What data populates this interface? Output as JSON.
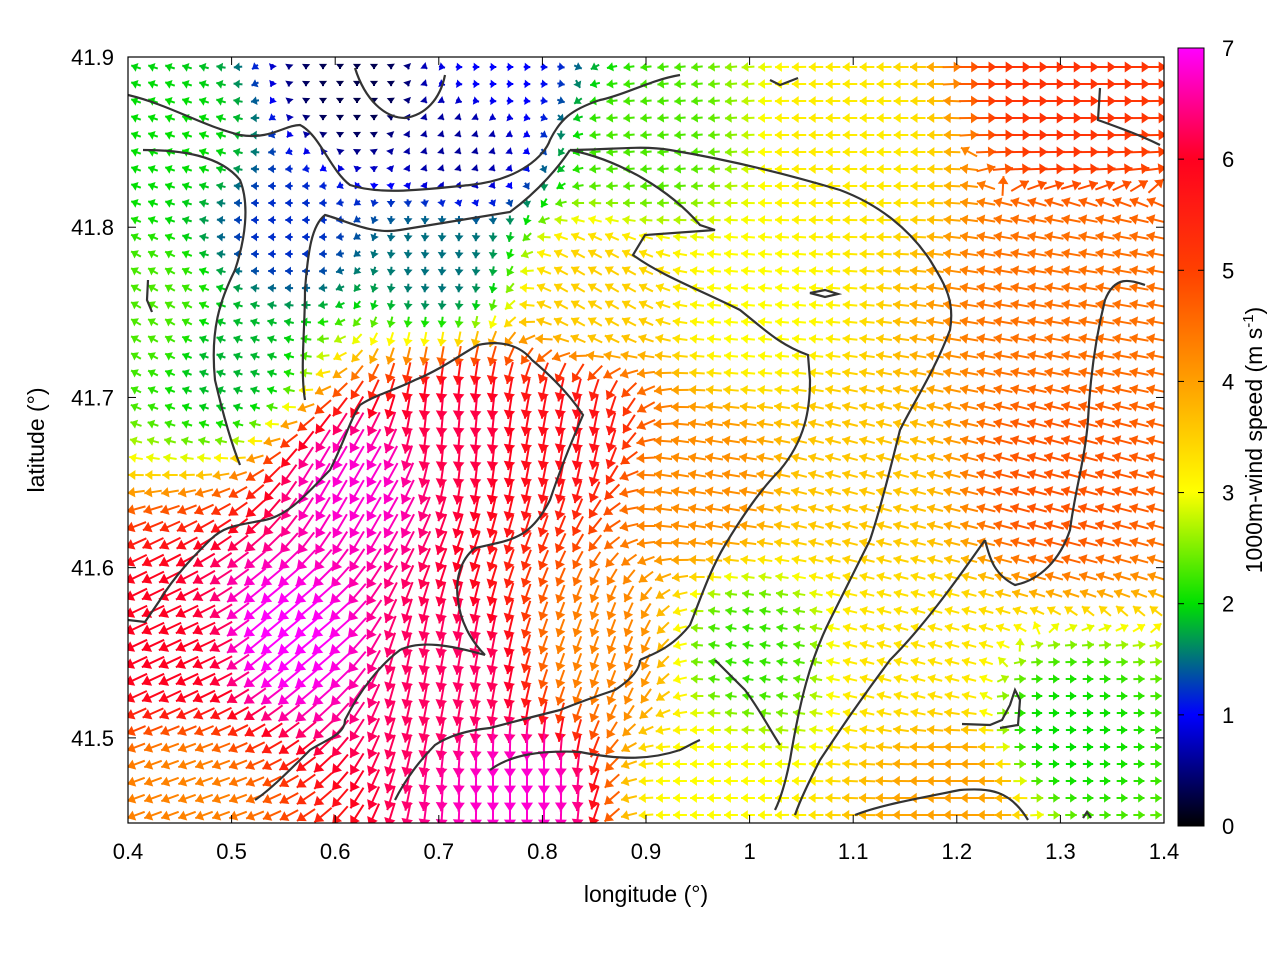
{
  "chart_data": {
    "type": "vector-field",
    "xlabel": "longitude (°)",
    "ylabel": "latitude (°)",
    "colorbar_label": "1000m-wind speed (m s",
    "colorbar_label_exp": "-1",
    "colorbar_label_end": ")",
    "xlim": [
      0.4,
      1.4
    ],
    "ylim": [
      41.45,
      41.9
    ],
    "xticks": [
      0.4,
      0.5,
      0.6,
      0.7,
      0.8,
      0.9,
      1.0,
      1.1,
      1.2,
      1.3,
      1.4
    ],
    "xtick_labels": [
      "0.4",
      "0.5",
      "0.6",
      "0.7",
      "0.8",
      "0.9",
      "1",
      "1.1",
      "1.2",
      "1.3",
      "1.4"
    ],
    "yticks": [
      41.5,
      41.6,
      41.7,
      41.8,
      41.9
    ],
    "ytick_labels": [
      "41.5",
      "41.6",
      "41.7",
      "41.8",
      "41.9"
    ],
    "colorbar_range": [
      0,
      7
    ],
    "colorbar_ticks": [
      "0",
      "1",
      "2",
      "3",
      "4",
      "5",
      "6",
      "7"
    ],
    "colormap": [
      "#000000",
      "#0000ff",
      "#00e000",
      "#ffff00",
      "#ffa000",
      "#ff4000",
      "#ff0020",
      "#ff00ff"
    ],
    "grid": false,
    "legend": "none",
    "field_samples": [
      {
        "lon": 0.45,
        "lat": 41.85,
        "speed": 2.0,
        "dir_deg": 200
      },
      {
        "lon": 0.55,
        "lat": 41.8,
        "speed": 1.2,
        "dir_deg": 180
      },
      {
        "lon": 0.62,
        "lat": 41.88,
        "speed": 0.3,
        "dir_deg": 90
      },
      {
        "lon": 0.72,
        "lat": 41.85,
        "speed": 0.6,
        "dir_deg": 45
      },
      {
        "lon": 0.75,
        "lat": 41.89,
        "speed": 1.0,
        "dir_deg": 0
      },
      {
        "lon": 0.9,
        "lat": 41.85,
        "speed": 2.3,
        "dir_deg": 175
      },
      {
        "lon": 1.1,
        "lat": 41.85,
        "speed": 3.2,
        "dir_deg": 180
      },
      {
        "lon": 1.3,
        "lat": 41.88,
        "speed": 5.2,
        "dir_deg": 0
      },
      {
        "lon": 0.42,
        "lat": 41.75,
        "speed": 2.3,
        "dir_deg": 210
      },
      {
        "lon": 0.5,
        "lat": 41.72,
        "speed": 1.8,
        "dir_deg": 200
      },
      {
        "lon": 0.7,
        "lat": 41.78,
        "speed": 1.5,
        "dir_deg": 95
      },
      {
        "lon": 0.85,
        "lat": 41.76,
        "speed": 3.5,
        "dir_deg": 210
      },
      {
        "lon": 1.0,
        "lat": 41.75,
        "speed": 3.0,
        "dir_deg": 185
      },
      {
        "lon": 1.3,
        "lat": 41.76,
        "speed": 4.5,
        "dir_deg": 190
      },
      {
        "lon": 0.62,
        "lat": 41.65,
        "speed": 6.8,
        "dir_deg": 120
      },
      {
        "lon": 0.72,
        "lat": 41.68,
        "speed": 6.2,
        "dir_deg": 95
      },
      {
        "lon": 0.82,
        "lat": 41.68,
        "speed": 5.8,
        "dir_deg": 100
      },
      {
        "lon": 0.95,
        "lat": 41.65,
        "speed": 4.2,
        "dir_deg": 190
      },
      {
        "lon": 1.1,
        "lat": 41.65,
        "speed": 3.6,
        "dir_deg": 195
      },
      {
        "lon": 1.3,
        "lat": 41.65,
        "speed": 4.8,
        "dir_deg": 195
      },
      {
        "lon": 0.45,
        "lat": 41.55,
        "speed": 6.0,
        "dir_deg": 155
      },
      {
        "lon": 0.55,
        "lat": 41.56,
        "speed": 7.0,
        "dir_deg": 140
      },
      {
        "lon": 0.72,
        "lat": 41.54,
        "speed": 6.3,
        "dir_deg": 100
      },
      {
        "lon": 0.85,
        "lat": 41.55,
        "speed": 4.3,
        "dir_deg": 110
      },
      {
        "lon": 1.0,
        "lat": 41.55,
        "speed": 2.2,
        "dir_deg": 190
      },
      {
        "lon": 1.15,
        "lat": 41.55,
        "speed": 3.3,
        "dir_deg": 195
      },
      {
        "lon": 1.3,
        "lat": 41.5,
        "speed": 2.0,
        "dir_deg": 0
      },
      {
        "lon": 0.45,
        "lat": 41.47,
        "speed": 4.3,
        "dir_deg": 160
      },
      {
        "lon": 0.78,
        "lat": 41.47,
        "speed": 6.8,
        "dir_deg": 90
      },
      {
        "lon": 0.95,
        "lat": 41.47,
        "speed": 3.0,
        "dir_deg": 180
      },
      {
        "lon": 1.2,
        "lat": 41.47,
        "speed": 4.0,
        "dir_deg": 180
      }
    ]
  }
}
